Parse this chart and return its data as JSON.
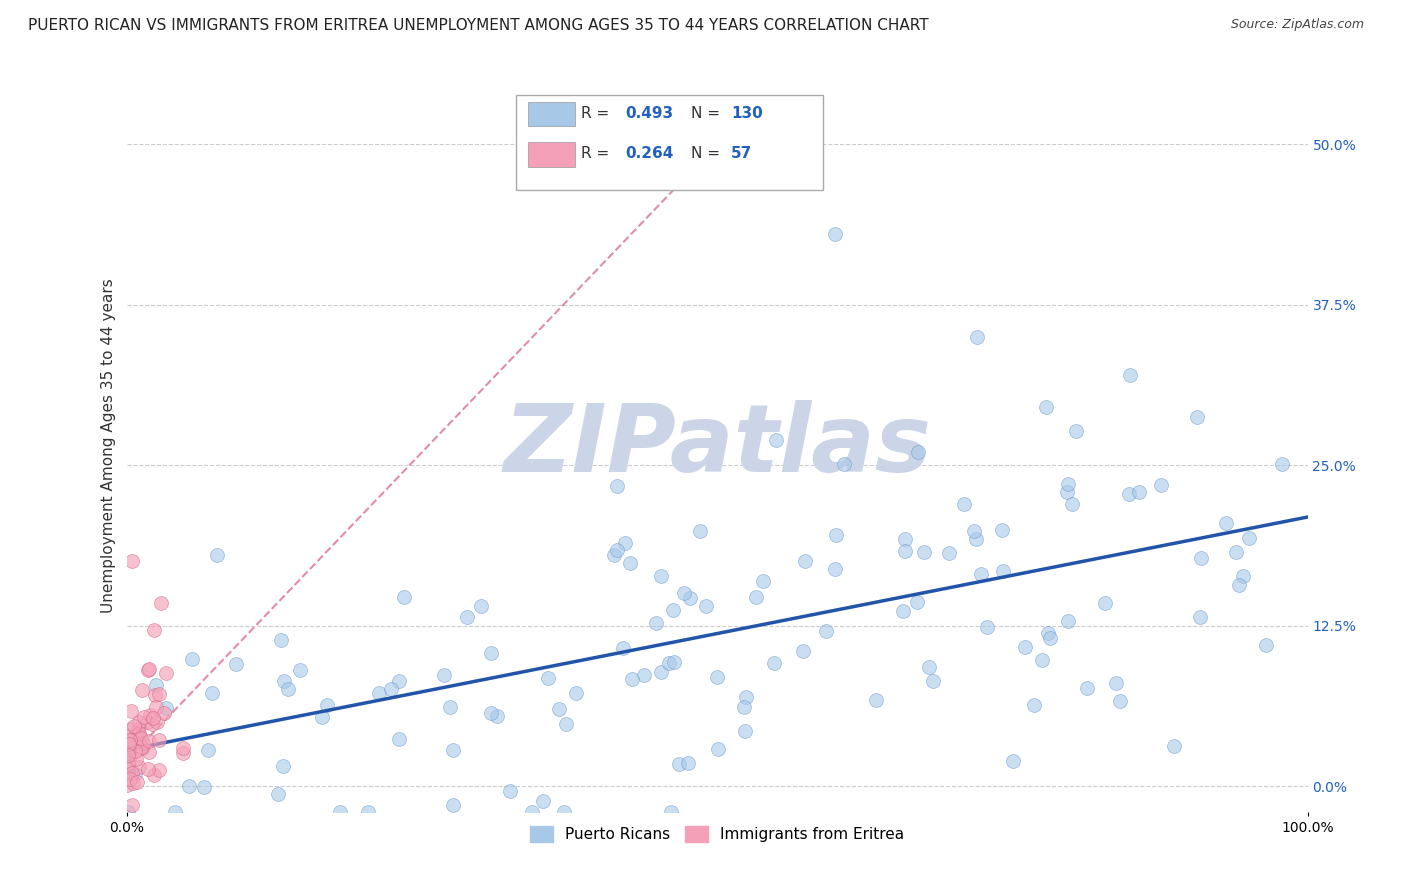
{
  "title": "PUERTO RICAN VS IMMIGRANTS FROM ERITREA UNEMPLOYMENT AMONG AGES 35 TO 44 YEARS CORRELATION CHART",
  "source": "Source: ZipAtlas.com",
  "ylabel": "Unemployment Among Ages 35 to 44 years",
  "xlim": [
    0.0,
    1.0
  ],
  "ylim": [
    -0.02,
    0.55
  ],
  "yticks": [
    0.0,
    0.125,
    0.25,
    0.375,
    0.5
  ],
  "ytick_labels": [
    "0.0%",
    "12.5%",
    "25.0%",
    "37.5%",
    "50.0%"
  ],
  "xticks": [
    0.0,
    1.0
  ],
  "xtick_labels": [
    "0.0%",
    "100.0%"
  ],
  "legend_entries": [
    {
      "label": "Puerto Ricans",
      "color": "#a8c8e8",
      "R": 0.493,
      "N": 130
    },
    {
      "label": "Immigrants from Eritrea",
      "color": "#f4a0b8",
      "R": 0.264,
      "N": 57
    }
  ],
  "watermark": "ZIPatlas",
  "watermark_color": "#ccd5e8",
  "background_color": "#ffffff",
  "grid_color": "#cccccc",
  "title_fontsize": 11,
  "axis_label_fontsize": 11,
  "tick_fontsize": 10,
  "blue_dot_color": "#a8c8e8",
  "blue_dot_edge": "#6090c8",
  "pink_dot_color": "#f4a0b8",
  "pink_dot_edge": "#d06080",
  "blue_line_color": "#2255aa",
  "pink_line_color": "#dd7090",
  "R_blue": 0.493,
  "N_blue": 130,
  "R_pink": 0.264,
  "N_pink": 57,
  "legend_R_color": "#2060c0",
  "legend_N_color": "#2060c0"
}
